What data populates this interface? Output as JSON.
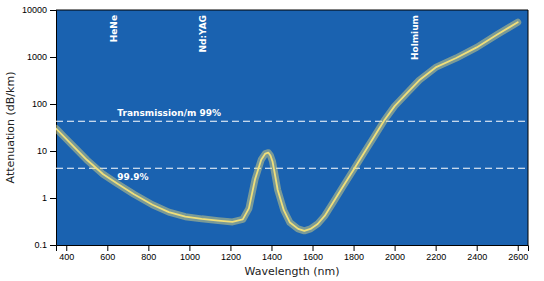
{
  "chart_data": {
    "type": "line",
    "x_label": "Wavelength (nm)",
    "y_label": "Attenuation (dB/km)",
    "log": "y",
    "color": "#f0df7a",
    "xlim": [
      350,
      2650
    ],
    "ylim": [
      0.1,
      10000
    ],
    "xticks": [
      400,
      600,
      800,
      1000,
      1200,
      1400,
      1600,
      1800,
      2000,
      2200,
      2400,
      2600
    ],
    "yticks": [
      0.1,
      1,
      10,
      100,
      1000,
      10000
    ],
    "x": [
      350,
      390,
      440,
      500,
      580,
      650,
      730,
      820,
      900,
      980,
      1060,
      1140,
      1210,
      1260,
      1290,
      1320,
      1350,
      1370,
      1385,
      1395,
      1405,
      1415,
      1430,
      1460,
      1490,
      1530,
      1560,
      1590,
      1625,
      1660,
      1700,
      1750,
      1800,
      1850,
      1900,
      1950,
      2000,
      2060,
      2120,
      2200,
      2300,
      2400,
      2500,
      2600
    ],
    "values": [
      30,
      20,
      12,
      6.5,
      3.2,
      2.0,
      1.2,
      0.72,
      0.5,
      0.4,
      0.36,
      0.33,
      0.31,
      0.35,
      0.6,
      2.5,
      6.5,
      8.8,
      9.2,
      8.0,
      6.0,
      3.5,
      1.5,
      0.55,
      0.3,
      0.22,
      0.2,
      0.22,
      0.28,
      0.42,
      0.8,
      1.8,
      4.0,
      9.0,
      20.0,
      45.0,
      90.0,
      170.0,
      320.0,
      600.0,
      950.0,
      1600.0,
      3000.0,
      5500.0
    ],
    "reference_lines": [
      {
        "value": 43,
        "label": "Transmission/m 99%"
      },
      {
        "value": 4.3,
        "label": "99.9%"
      }
    ],
    "annotations": [
      {
        "text": "HeNe",
        "x": 633
      },
      {
        "text": "Nd:YAG",
        "x": 1064
      },
      {
        "text": "Holmium",
        "x": 2100
      }
    ]
  }
}
